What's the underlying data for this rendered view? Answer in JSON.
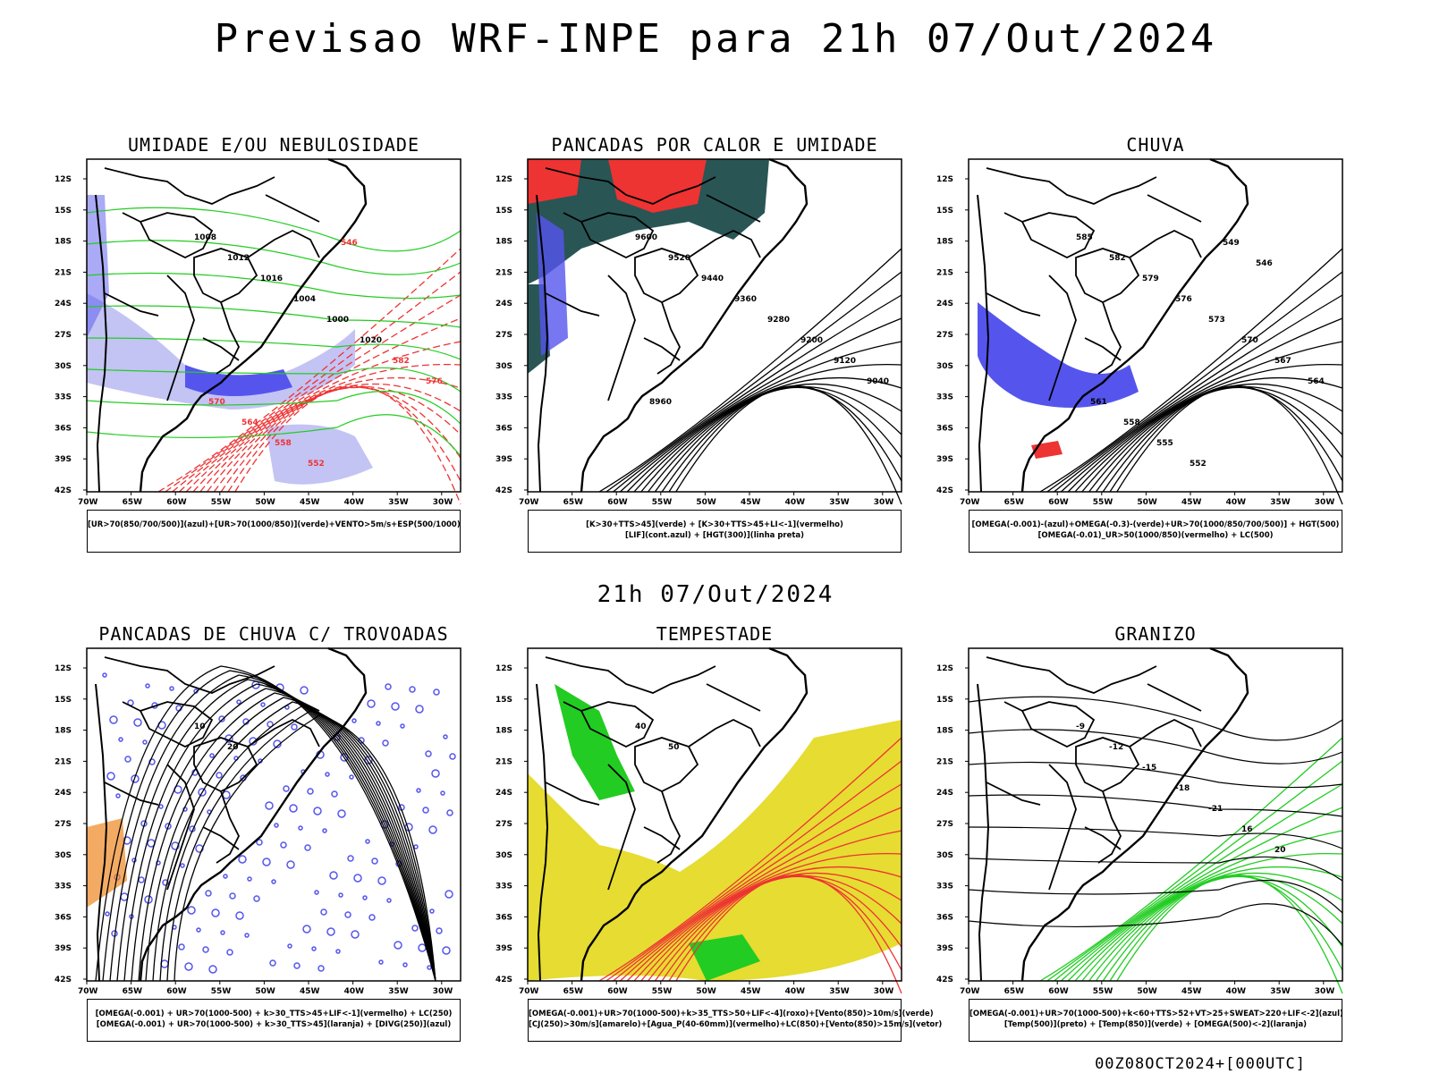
{
  "header": {
    "title": "Previsao WRF-INPE  para 21h 07/Out/2024",
    "mid_title": "21h 07/Out/2024",
    "footer": "00Z08OCT2024+[000UTC]"
  },
  "axes": {
    "lat_ticks": [
      "12S",
      "15S",
      "18S",
      "21S",
      "24S",
      "27S",
      "30S",
      "33S",
      "36S",
      "39S",
      "42S"
    ],
    "lon_ticks": [
      "70W",
      "65W",
      "60W",
      "55W",
      "50W",
      "45W",
      "40W",
      "35W",
      "30W"
    ]
  },
  "panels": [
    {
      "title": "UMIDADE E/OU NEBULOSIDADE",
      "legend": [
        "[UR>70(850/700/500)](azul)+[UR>70(1000/850)](verde)+VENTO>5m/s+ESP(500/1000)"
      ],
      "contour_labels": [
        "1008",
        "1012",
        "1016",
        "1004",
        "1000",
        "1020",
        "582",
        "576",
        "570",
        "564",
        "558",
        "552",
        "546"
      ]
    },
    {
      "title": "PANCADAS POR CALOR E UMIDADE",
      "legend": [
        "[K>30+TTS>45](verde) + [K>30+TTS>45+LI<-1](vermelho)",
        "[LIF](cont.azul) + [HGT(300)](linha preta)"
      ],
      "contour_labels": [
        "9600",
        "9520",
        "9440",
        "9360",
        "9280",
        "9200",
        "9120",
        "9040",
        "8960"
      ]
    },
    {
      "title": "CHUVA",
      "legend": [
        "[OMEGA(-0.001)-(azul)+OMEGA(-0.3)-(verde)+UR>70(1000/850/700/500)] + HGT(500)",
        "[OMEGA(-0.01)_UR>50(1000/850)(vermelho) + LC(500)"
      ],
      "contour_labels": [
        "585",
        "582",
        "579",
        "576",
        "573",
        "570",
        "567",
        "564",
        "561",
        "558",
        "555",
        "552",
        "549",
        "546"
      ]
    },
    {
      "title": "PANCADAS DE CHUVA C/ TROVOADAS",
      "legend": [
        "[OMEGA(-0.001) + UR>70(1000-500) + k>30_TTS>45+LIF<-1](vermelho) + LC(250)",
        "[OMEGA(-0.001) + UR>70(1000-500) + k>30_TTS>45](laranja) + [DIVG(250)](azul)"
      ],
      "contour_labels": [
        "10",
        "20"
      ]
    },
    {
      "title": "TEMPESTADE",
      "legend": [
        "[OMEGA(-0.001)+UR>70(1000-500)+k>35_TTS>50+LIF<-4](roxo)+[Vento(850)>10m/s](verde)",
        "[CJ(250)>30m/s](amarelo)+[Agua_P(40-60mm)](vermelho)+LC(850)+[Vento(850)>15m/s](vetor)"
      ],
      "contour_labels": [
        "40",
        "50"
      ]
    },
    {
      "title": "GRANIZO",
      "legend": [
        "[OMEGA(-0.001)+UR>70(1000-500)+k<60+TTS>52+VT>25+SWEAT>220+LIF<-2](azul)",
        "[Temp(500)](preto) + [Temp(850)](verde) + [OMEGA(500)<-2](laranja)"
      ],
      "contour_labels": [
        "-9",
        "-12",
        "-15",
        "-18",
        "-21",
        "16",
        "20"
      ]
    }
  ],
  "colors": {
    "coast": "#000000",
    "humid_blue": "#5555ee",
    "humid_lightblue": "#aaaaf0",
    "green": "#22cc22",
    "red": "#ee3333",
    "darkteal": "#2a5555",
    "yellow": "#e6dc32",
    "orange": "#ee8822",
    "contour_black": "#000000"
  }
}
